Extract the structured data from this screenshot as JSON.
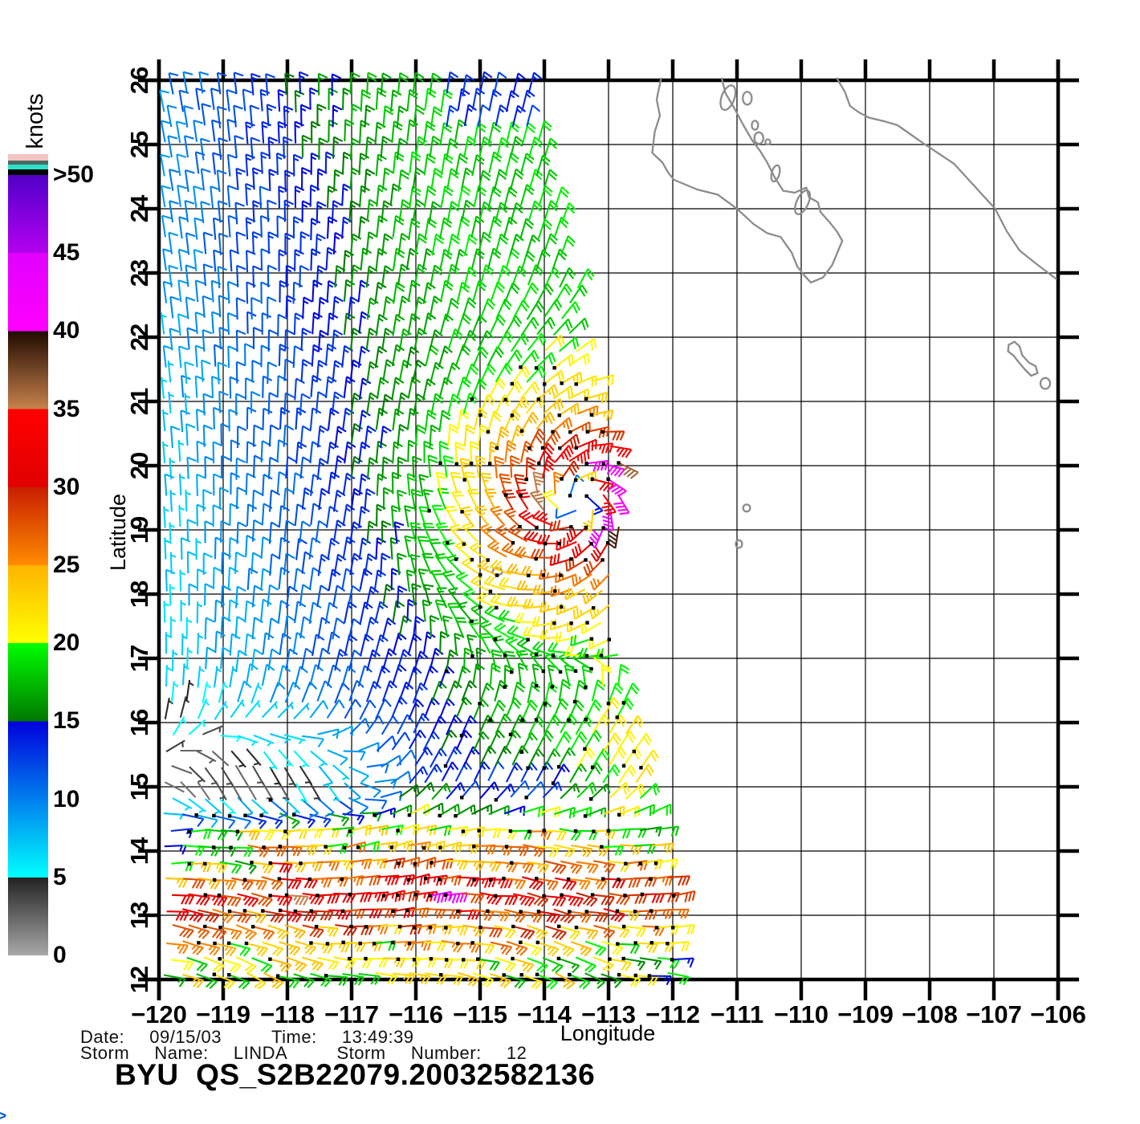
{
  "footer": {
    "date_line": "Date:  09/15/03    Time:  13:49:39",
    "storm_line": "Storm  Name:  LINDA    Storm  Number:  12",
    "title": "BYU  QS_S2B22079.20032582136"
  },
  "corner_glyph": ">",
  "colorbar": {
    "label": "knots",
    "tick_labels": [
      ">50",
      "45",
      "40",
      "35",
      "30",
      "25",
      "20",
      "15",
      "10",
      "5",
      "0"
    ],
    "overflow_stripes": [
      "#000000",
      "#2fe0c8",
      "#4a6a62",
      "#f2c4c4"
    ]
  },
  "axes": {
    "x_label": "Longitude",
    "y_label": "Latitude",
    "x_tick_labels": [
      "-120",
      "-119",
      "-118",
      "-117",
      "-116",
      "-115",
      "-114",
      "-113",
      "-112",
      "-111",
      "-110",
      "-109",
      "-108",
      "-107",
      "-106"
    ],
    "y_tick_labels": [
      "12",
      "13",
      "14",
      "15",
      "16",
      "17",
      "18",
      "19",
      "20",
      "21",
      "22",
      "23",
      "24",
      "25",
      "26"
    ]
  },
  "chart_data": {
    "type": "wind_barb_map",
    "title": "BYU  QS_S2B22079.20032582136",
    "date": "09/15/03",
    "time": "13:49:39",
    "storm_name": "LINDA",
    "storm_number": "12",
    "xlabel": "Longitude",
    "ylabel": "Latitude",
    "xlim": [
      -120,
      -106
    ],
    "ylim": [
      12,
      26
    ],
    "grid_interval_deg": 1,
    "colorbar": {
      "label": "knots",
      "ticks": [
        0,
        5,
        10,
        15,
        20,
        25,
        30,
        35,
        40,
        45,
        50
      ],
      "overflow_label": ">50",
      "stops": [
        [
          0,
          "#a8a8a8",
          5,
          "#222222"
        ],
        [
          5,
          "#00ffff",
          15,
          "#0000dc"
        ],
        [
          15,
          "#007800",
          20,
          "#00ff00"
        ],
        [
          20,
          "#ffff00",
          25,
          "#ffb400"
        ],
        [
          25,
          "#ff8c00",
          30,
          "#c81e00"
        ],
        [
          30,
          "#e10000",
          35,
          "#ff0000"
        ],
        [
          35,
          "#c8824b",
          40,
          "#200a00"
        ],
        [
          40,
          "#ff00ff",
          45,
          "#e100ff"
        ],
        [
          45,
          "#b400f0",
          50,
          "#5000c8"
        ]
      ]
    },
    "wind_field": {
      "note": "QuikSCAT scatterometer wind-barb swath; barbs colored by speed in knots, black squares mark rain-flagged cells",
      "grid_spacing_deg": 0.25,
      "barb_units": "knots",
      "west_edge_lon": -119.92,
      "swath_east_edge": [
        [
          12,
          -111.9
        ],
        [
          12.8,
          -111.9
        ],
        [
          13.5,
          -112.0
        ],
        [
          14.3,
          -112.2
        ],
        [
          15,
          -112.4
        ],
        [
          16,
          -112.55
        ],
        [
          17,
          -112.8
        ],
        [
          18,
          -112.95
        ],
        [
          18.8,
          -112.8
        ],
        [
          19.5,
          -112.72
        ],
        [
          20.3,
          -112.8
        ],
        [
          21,
          -113.15
        ],
        [
          22,
          -113.45
        ],
        [
          23,
          -113.6
        ],
        [
          24,
          -113.85
        ],
        [
          25,
          -114.05
        ],
        [
          26,
          -114.3
        ]
      ],
      "vortex": {
        "name": "LINDA",
        "center_lon_lat": [
          -113.5,
          19.45
        ],
        "peak_knots": 44,
        "radius_max_wind_deg": 0.55,
        "rotation": "counterclockwise"
      },
      "trade_wind_band": {
        "lat_range": [
          12,
          14.8
        ],
        "direction_from": "east",
        "peak_knots": 38,
        "peak_lat": 13.35
      },
      "calm_region": {
        "center_lon_lat": [
          -118.4,
          14.9
        ],
        "min_knots": 3
      },
      "background_north": {
        "direction_from": "NNE",
        "knots_west": 8,
        "knots_east": 19
      }
    },
    "coastline": {
      "baja_california": [
        [
          -112.18,
          26.04
        ],
        [
          -112.25,
          25.7
        ],
        [
          -112.2,
          25.45
        ],
        [
          -112.28,
          25.2
        ],
        [
          -112.32,
          24.87
        ],
        [
          -112.16,
          24.72
        ],
        [
          -112.07,
          24.56
        ],
        [
          -111.98,
          24.45
        ],
        [
          -111.62,
          24.3
        ],
        [
          -111.3,
          24.22
        ],
        [
          -111.0,
          24.0
        ],
        [
          -110.74,
          23.76
        ],
        [
          -110.53,
          23.62
        ],
        [
          -110.32,
          23.56
        ],
        [
          -110.15,
          23.32
        ],
        [
          -110.06,
          23.1
        ],
        [
          -109.95,
          22.96
        ],
        [
          -109.85,
          22.85
        ],
        [
          -109.66,
          22.93
        ],
        [
          -109.52,
          23.12
        ],
        [
          -109.36,
          23.5
        ],
        [
          -109.44,
          23.64
        ],
        [
          -109.55,
          23.78
        ],
        [
          -109.7,
          23.95
        ],
        [
          -109.74,
          24.1
        ],
        [
          -109.88,
          24.18
        ],
        [
          -109.92,
          24.33
        ],
        [
          -110.1,
          24.25
        ],
        [
          -110.28,
          24.28
        ],
        [
          -110.42,
          24.5
        ],
        [
          -110.53,
          24.72
        ],
        [
          -110.64,
          24.9
        ],
        [
          -110.76,
          25.06
        ],
        [
          -110.9,
          25.3
        ],
        [
          -111.05,
          25.58
        ],
        [
          -111.18,
          25.8
        ],
        [
          -111.24,
          26.04
        ]
      ],
      "mainland_mexico": [
        [
          -109.45,
          26.04
        ],
        [
          -109.32,
          25.82
        ],
        [
          -109.24,
          25.6
        ],
        [
          -109.1,
          25.5
        ],
        [
          -108.95,
          25.42
        ],
        [
          -108.7,
          25.36
        ],
        [
          -108.5,
          25.3
        ],
        [
          -108.1,
          25.02
        ],
        [
          -107.62,
          24.7
        ],
        [
          -107.3,
          24.35
        ],
        [
          -106.98,
          24.0
        ],
        [
          -106.8,
          23.65
        ],
        [
          -106.6,
          23.35
        ],
        [
          -106.35,
          23.15
        ],
        [
          -106.02,
          22.9
        ]
      ],
      "islas_marias": [
        [
          -106.77,
          21.88
        ],
        [
          -106.68,
          21.93
        ],
        [
          -106.6,
          21.86
        ],
        [
          -106.56,
          21.72
        ],
        [
          -106.45,
          21.6
        ],
        [
          -106.35,
          21.55
        ],
        [
          -106.32,
          21.44
        ],
        [
          -106.42,
          21.4
        ],
        [
          -106.52,
          21.5
        ],
        [
          -106.62,
          21.62
        ],
        [
          -106.7,
          21.72
        ],
        [
          -106.78,
          21.78
        ],
        [
          -106.77,
          21.88
        ]
      ],
      "islands": [
        [
          -111.14,
          25.73,
          0.1,
          0.2,
          20
        ],
        [
          -110.84,
          25.72,
          0.07,
          0.1,
          0
        ],
        [
          -110.72,
          25.3,
          0.05,
          0.07,
          0
        ],
        [
          -110.66,
          25.1,
          0.07,
          0.09,
          0
        ],
        [
          -110.52,
          25.04,
          0.04,
          0.04,
          0
        ],
        [
          -110.4,
          24.55,
          0.06,
          0.13,
          15
        ],
        [
          -109.98,
          24.1,
          0.09,
          0.2,
          25
        ],
        [
          -110.85,
          19.34,
          0.055,
          0.055,
          0
        ],
        [
          -110.97,
          18.78,
          0.05,
          0.06,
          0
        ],
        [
          -114.73,
          18.35,
          0.075,
          0.055,
          0
        ],
        [
          -106.2,
          21.28,
          0.075,
          0.085,
          0
        ]
      ]
    },
    "colors": {
      "coastline": "#8c8c8c",
      "grid": "#000000",
      "rain_flag_dot": "#000000",
      "background": "#ffffff"
    }
  }
}
